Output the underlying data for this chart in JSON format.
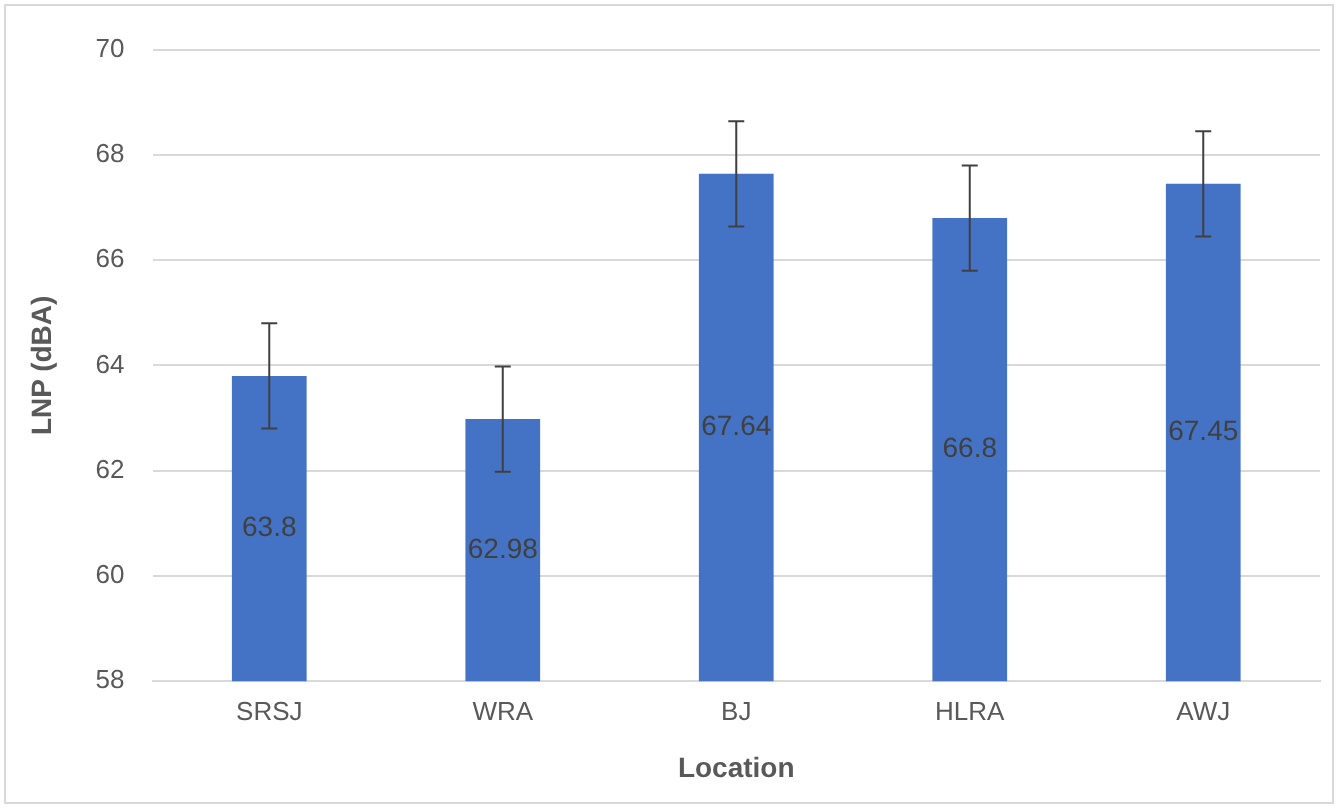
{
  "chart_data": {
    "type": "bar",
    "xlabel": "Location",
    "ylabel": "LNP (dBA)",
    "categories": [
      "SRSJ",
      "WRA",
      "BJ",
      "HLRA",
      "AWJ"
    ],
    "values": [
      63.8,
      62.98,
      67.64,
      66.8,
      67.45
    ],
    "errors": [
      1,
      1,
      1,
      1,
      1
    ],
    "color": "#4472c4",
    "ylim": [
      58,
      70
    ],
    "yticks": [
      58,
      60,
      62,
      64,
      66,
      68,
      70
    ],
    "grid": "y",
    "data_labels": true
  }
}
